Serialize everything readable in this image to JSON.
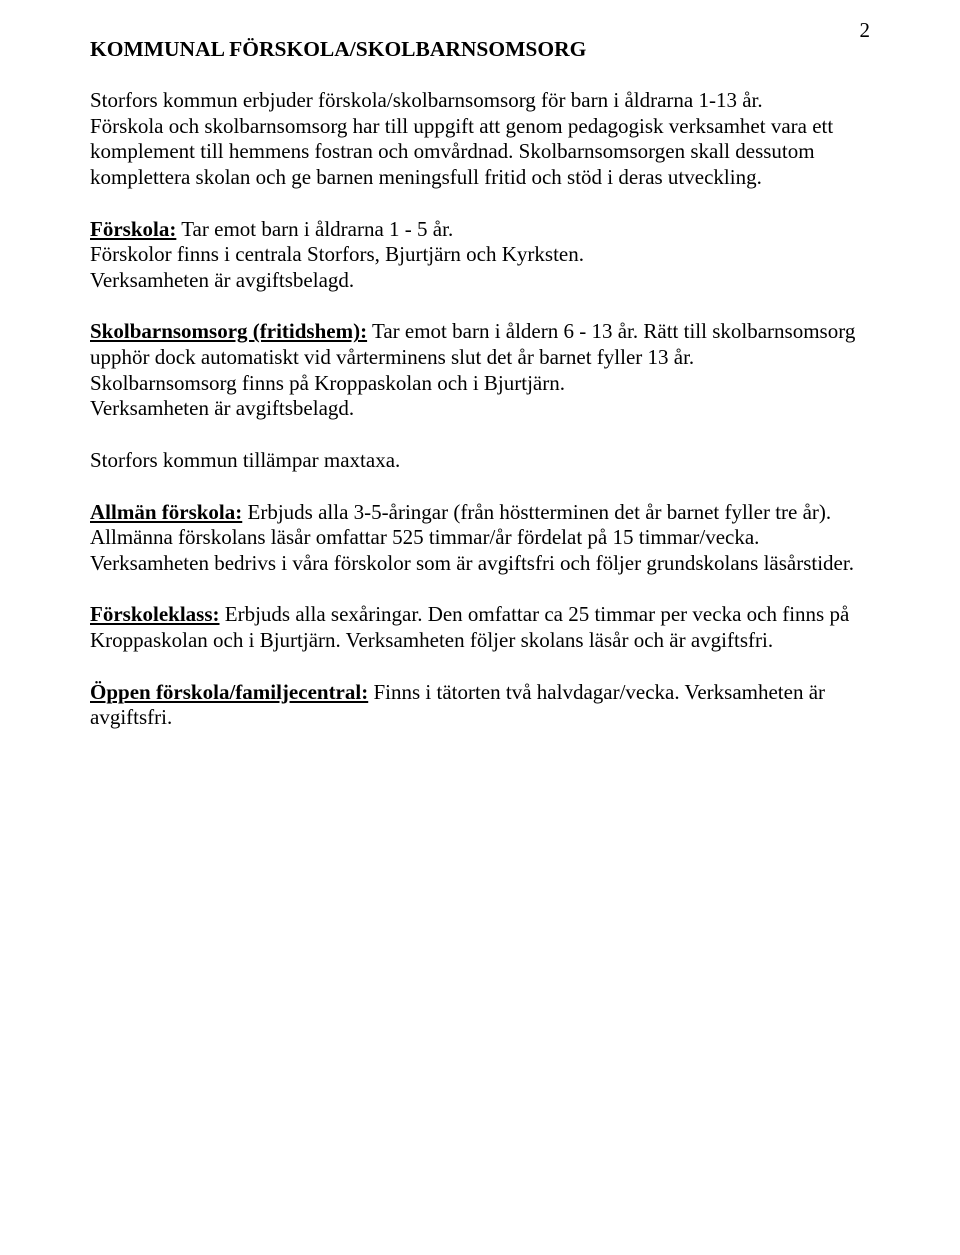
{
  "pageNumber": "2",
  "title": "KOMMUNAL FÖRSKOLA/SKOLBARNSOMSORG",
  "intro": "Storfors kommun erbjuder förskola/skolbarnsomsorg för barn i åldrarna 1-13 år.\nFörskola och skolbarnsomsorg har till uppgift att genom pedagogisk verksamhet vara ett komplement till hemmens fostran och omvårdnad. Skolbarnsomsorgen skall dessutom komplettera skolan och ge barnen meningsfull fritid och stöd i deras utveckling.",
  "sections": {
    "forskola": {
      "heading": "Förskola:",
      "body": " Tar emot barn i åldrarna 1 - 5 år.\nFörskolor finns i centrala Storfors, Bjurtjärn och Kyrksten.\nVerksamheten är avgiftsbelagd."
    },
    "skolbarnsomsorg": {
      "heading": "Skolbarnsomsorg (fritidshem):",
      "body": " Tar emot barn i åldern 6 - 13 år. Rätt till skolbarnsomsorg upphör dock automatiskt vid vårterminens slut det år barnet fyller 13 år.\nSkolbarnsomsorg finns på Kroppaskolan och i Bjurtjärn.\nVerksamheten är avgiftsbelagd."
    },
    "maxtaxa": "Storfors kommun tillämpar maxtaxa.",
    "allman": {
      "heading": "Allmän förskola:",
      "body": " Erbjuds alla 3-5-åringar (från höstterminen det år barnet fyller tre år).\nAllmänna förskolans läsår omfattar 525 timmar/år fördelat på 15 timmar/vecka.\nVerksamheten bedrivs i våra förskolor som är avgiftsfri och följer grundskolans läsårstider."
    },
    "forskoleklass": {
      "heading": "Förskoleklass:",
      "body": " Erbjuds alla sexåringar. Den omfattar ca 25 timmar per vecka och finns på Kroppaskolan och i Bjurtjärn. Verksamheten följer skolans läsår och är avgiftsfri."
    },
    "oppen": {
      "heading": "Öppen förskola/familjecentral:",
      "body": " Finns i tätorten två halvdagar/vecka. Verksamheten är avgiftsfri."
    }
  }
}
